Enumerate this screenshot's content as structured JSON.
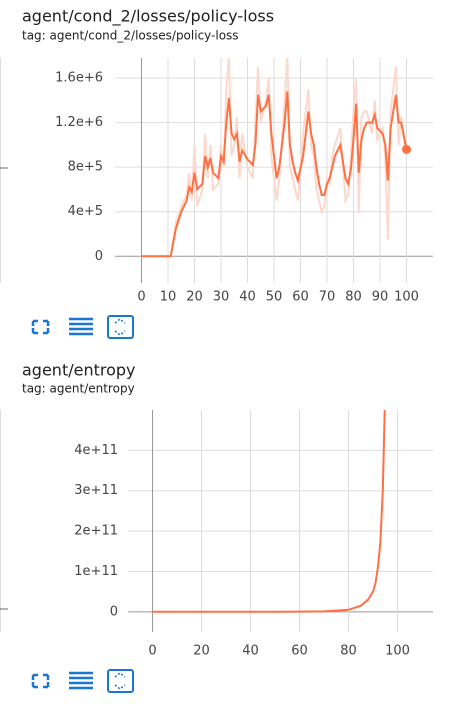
{
  "chart_data": [
    {
      "type": "line",
      "title": "agent/cond_2/losses/policy-loss",
      "subtitle": "tag: agent/cond_2/losses/policy-loss",
      "x": [
        0,
        10,
        11,
        13,
        15,
        17,
        18,
        19,
        20,
        21,
        23,
        24,
        25,
        26,
        27,
        29,
        30,
        31,
        32,
        33,
        34,
        35,
        36,
        37,
        38,
        40,
        42,
        43,
        44,
        45,
        47,
        48,
        49,
        51,
        52,
        54,
        55,
        56,
        57,
        58,
        59,
        61,
        63,
        64,
        65,
        66,
        67,
        68,
        69,
        70,
        71,
        72,
        73,
        75,
        77,
        78,
        79,
        80,
        81,
        82,
        83,
        84,
        85,
        87,
        88,
        89,
        91,
        92,
        93,
        94,
        96,
        97,
        98,
        100
      ],
      "series": [
        {
          "color": "#fcd9cc",
          "values": [
            0,
            0,
            0,
            300000,
            450000,
            550000,
            750000,
            500000,
            1000000,
            450000,
            600000,
            1100000,
            700000,
            1000000,
            600000,
            650000,
            1000000,
            800000,
            1500000,
            1800000,
            900000,
            1000000,
            1250000,
            700000,
            1100000,
            800000,
            700000,
            1200000,
            1700000,
            1200000,
            1400000,
            1600000,
            900000,
            500000,
            700000,
            1400000,
            1800000,
            800000,
            700000,
            600000,
            500000,
            1100000,
            1500000,
            1000000,
            900000,
            600000,
            500000,
            400000,
            450000,
            700000,
            650000,
            900000,
            1000000,
            1150000,
            500000,
            550000,
            900000,
            1300000,
            1600000,
            400000,
            1250000,
            1300000,
            1300000,
            1100000,
            1400000,
            1050000,
            1150000,
            900000,
            150000,
            1300000,
            1700000,
            1000000,
            1250000,
            900000
          ]
        },
        {
          "color": "#ff7043",
          "values": [
            0,
            0,
            0,
            250000,
            400000,
            500000,
            620000,
            580000,
            750000,
            600000,
            650000,
            900000,
            800000,
            880000,
            750000,
            700000,
            900000,
            850000,
            1200000,
            1420000,
            1100000,
            1050000,
            1100000,
            850000,
            950000,
            870000,
            820000,
            1000000,
            1450000,
            1300000,
            1350000,
            1450000,
            1100000,
            700000,
            800000,
            1200000,
            1480000,
            1000000,
            850000,
            750000,
            680000,
            900000,
            1300000,
            1100000,
            1000000,
            800000,
            650000,
            550000,
            550000,
            650000,
            700000,
            800000,
            900000,
            1000000,
            700000,
            650000,
            780000,
            1050000,
            1370000,
            750000,
            1050000,
            1150000,
            1200000,
            1200000,
            1270000,
            1150000,
            1100000,
            1000000,
            680000,
            1150000,
            1450000,
            1200000,
            1200000,
            960000
          ],
          "last_point_marker": true
        }
      ],
      "xlim": [
        -10,
        110
      ],
      "xticks": [
        0,
        10,
        20,
        30,
        40,
        50,
        60,
        70,
        80,
        90,
        100
      ],
      "ylim": [
        -240000,
        1780000
      ],
      "yticks": [
        0,
        {
          "value": 400000,
          "label": "4e+5"
        },
        {
          "value": 800000,
          "label": "8e+5"
        },
        {
          "value": 1200000,
          "label": "1.2e+6"
        },
        {
          "value": 1600000,
          "label": "1.6e+6"
        }
      ],
      "grid": true
    },
    {
      "type": "line",
      "title": "agent/entropy",
      "subtitle": "tag: agent/entropy",
      "x": [
        0,
        10,
        20,
        30,
        40,
        50,
        60,
        70,
        80,
        85,
        88,
        90,
        91,
        92,
        93,
        94,
        95
      ],
      "series": [
        {
          "color": "#ff7043",
          "values": [
            0,
            100000000,
            200000000,
            200000000,
            300000000,
            400000000,
            600000000,
            1000000000,
            5000000000,
            15000000000,
            30000000000,
            50000000000,
            70000000000,
            110000000000,
            170000000000,
            300000000000,
            550000000000
          ]
        }
      ],
      "xlim": [
        -10,
        114.5
      ],
      "xticks": [
        0,
        20,
        40,
        60,
        80,
        100
      ],
      "ylim": [
        -50000000000,
        500000000000
      ],
      "yticks": [
        0,
        {
          "value": 100000000000,
          "label": "1e+11"
        },
        {
          "value": 200000000000,
          "label": "2e+11"
        },
        {
          "value": 300000000000,
          "label": "3e+11"
        },
        {
          "value": 400000000000,
          "label": "4e+11"
        }
      ],
      "grid": true
    }
  ]
}
